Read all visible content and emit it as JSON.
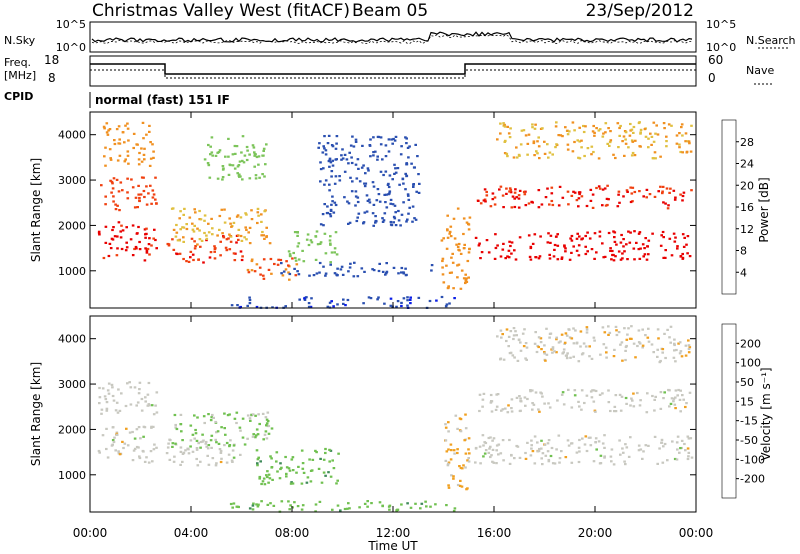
{
  "header": {
    "station": "Christmas Valley West (fitACF)",
    "beam": "Beam 05",
    "date": "23/Sep/2012"
  },
  "noise_panel": {
    "left_label": "N.Sky",
    "right_label": "N.Search",
    "left_ticks": [
      "10^5",
      "10^0"
    ],
    "right_ticks": [
      "10^5",
      "10^0"
    ]
  },
  "freq_panel": {
    "left_label_line1": "Freq.",
    "left_label_line2": "[MHz]",
    "right_label": "Nave",
    "left_ticks": [
      "18",
      "8"
    ],
    "right_ticks": [
      "60",
      "0"
    ]
  },
  "cpid": {
    "label": "CPID",
    "text": "normal (fast) 151 IF"
  },
  "chart_data": [
    {
      "type": "heatmap",
      "title": "",
      "xlabel": "Time UT",
      "ylabel": "Slant Range [km]",
      "x_ticks": [
        "00:00",
        "04:00",
        "08:00",
        "12:00",
        "16:00",
        "20:00",
        "00:00"
      ],
      "xlim_hours": [
        0,
        24
      ],
      "y_ticks": [
        1000,
        2000,
        3000,
        4000
      ],
      "ylim": [
        180,
        4500
      ],
      "colorbar": {
        "label": "Power [dB]",
        "ticks": [
          "4",
          "8",
          "12",
          "16",
          "20",
          "24",
          "28"
        ],
        "range": [
          0,
          32
        ],
        "colors": [
          "#0a1ee6",
          "#2a4fb0",
          "#3f8a6a",
          "#7cc45a",
          "#e0c040",
          "#f09020",
          "#f04010",
          "#e80000"
        ]
      },
      "bands": [
        {
          "t0": 0.3,
          "t1": 2.6,
          "r0": 1250,
          "r1": 2100,
          "value": 29
        },
        {
          "t0": 0.3,
          "t1": 2.6,
          "r0": 2350,
          "r1": 3100,
          "value": 26
        },
        {
          "t0": 0.5,
          "t1": 2.5,
          "r0": 3300,
          "r1": 4300,
          "value": 22
        },
        {
          "t0": 3.0,
          "t1": 6.0,
          "r0": 1200,
          "r1": 1800,
          "value": 27
        },
        {
          "t0": 3.2,
          "t1": 7.2,
          "r0": 1600,
          "r1": 2400,
          "value": 20
        },
        {
          "t0": 4.5,
          "t1": 7.0,
          "r0": 3000,
          "r1": 4000,
          "value": 14
        },
        {
          "t0": 6.2,
          "t1": 8.2,
          "r0": 800,
          "r1": 1300,
          "value": 24
        },
        {
          "t0": 7.8,
          "t1": 9.8,
          "r0": 1200,
          "r1": 1900,
          "value": 14
        },
        {
          "t0": 7.5,
          "t1": 13.5,
          "r0": 900,
          "r1": 1200,
          "value": 6
        },
        {
          "t0": 9.0,
          "t1": 13.0,
          "r0": 2000,
          "r1": 4000,
          "value": 6
        },
        {
          "t0": 5.5,
          "t1": 14.5,
          "r0": 200,
          "r1": 450,
          "value": 5
        },
        {
          "t0": 13.8,
          "t1": 15.0,
          "r0": 600,
          "r1": 2400,
          "value": 22
        },
        {
          "t0": 15.2,
          "t1": 23.8,
          "r0": 1250,
          "r1": 1900,
          "value": 30
        },
        {
          "t0": 15.3,
          "t1": 23.8,
          "r0": 2400,
          "r1": 2900,
          "value": 28
        },
        {
          "t0": 16.0,
          "t1": 23.8,
          "r0": 3500,
          "r1": 4300,
          "value": 20
        }
      ]
    },
    {
      "type": "heatmap",
      "title": "",
      "xlabel": "Time UT",
      "ylabel": "Slant Range [km]",
      "x_ticks": [
        "00:00",
        "04:00",
        "08:00",
        "12:00",
        "16:00",
        "20:00",
        "00:00"
      ],
      "xlim_hours": [
        0,
        24
      ],
      "y_ticks": [
        1000,
        2000,
        3000,
        4000
      ],
      "ylim": [
        180,
        4500
      ],
      "colorbar": {
        "label": "Velocity [m s⁻¹]",
        "ticks": [
          "200",
          "100",
          "50",
          "15",
          "-15",
          "-50",
          "-100",
          "-200"
        ],
        "range": [
          -250,
          250
        ],
        "colors": [
          "#1020d0",
          "#3f6a9a",
          "#3f8a5a",
          "#70c050",
          "#c8c8c0",
          "#f0a020",
          "#f07010",
          "#e83010",
          "#e00000"
        ]
      },
      "bands": [
        {
          "t0": 0.3,
          "t1": 2.6,
          "r0": 1250,
          "r1": 2100,
          "value": 0
        },
        {
          "t0": 0.3,
          "t1": 2.6,
          "r0": 2350,
          "r1": 3100,
          "value": 0
        },
        {
          "t0": 3.0,
          "t1": 6.0,
          "r0": 1200,
          "r1": 1800,
          "value": 0
        },
        {
          "t0": 3.2,
          "t1": 7.2,
          "r0": 1600,
          "r1": 2400,
          "value": -40
        },
        {
          "t0": 6.5,
          "t1": 9.8,
          "r0": 800,
          "r1": 1600,
          "value": -60
        },
        {
          "t0": 5.5,
          "t1": 14.5,
          "r0": 200,
          "r1": 450,
          "value": -60
        },
        {
          "t0": 14.0,
          "t1": 15.0,
          "r0": 600,
          "r1": 2400,
          "value": 40
        },
        {
          "t0": 15.2,
          "t1": 23.8,
          "r0": 1250,
          "r1": 1900,
          "value": 0
        },
        {
          "t0": 15.3,
          "t1": 23.8,
          "r0": 2400,
          "r1": 2900,
          "value": 0
        },
        {
          "t0": 16.0,
          "t1": 23.8,
          "r0": 3500,
          "r1": 4300,
          "value": 10
        }
      ]
    }
  ]
}
